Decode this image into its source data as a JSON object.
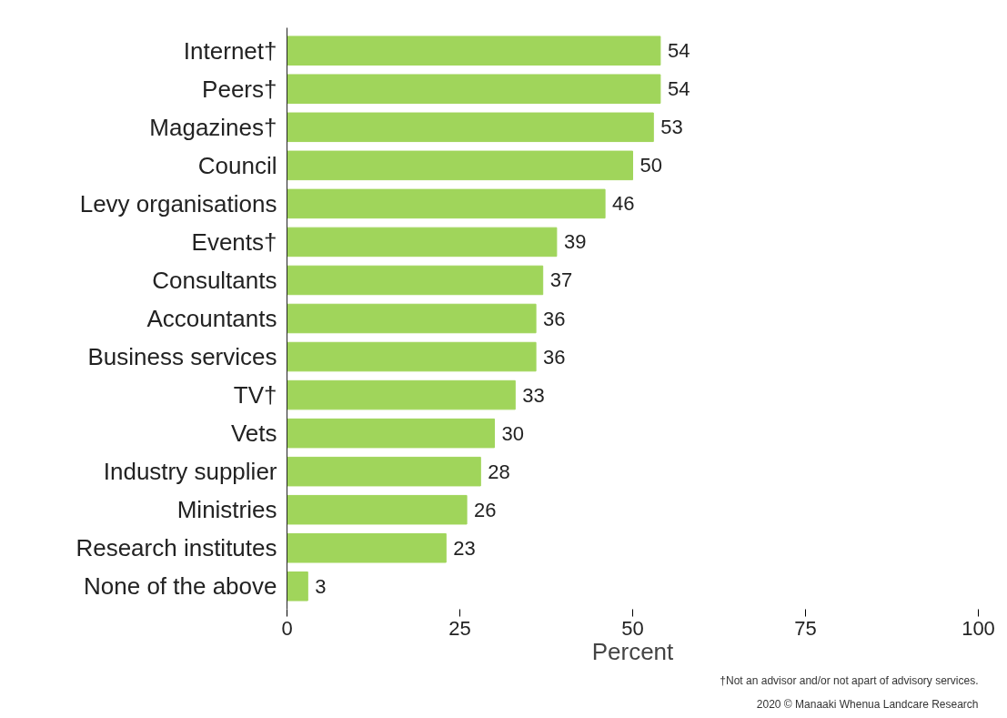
{
  "chart_data": {
    "type": "bar",
    "orientation": "horizontal",
    "xlabel": "Percent",
    "categories": [
      "Internet†",
      "Peers†",
      "Magazines†",
      "Council",
      "Levy organisations",
      "Events†",
      "Consultants",
      "Accountants",
      "Business services",
      "TV†",
      "Vets",
      "Industry supplier",
      "Ministries",
      "Research institutes",
      "None of the above"
    ],
    "values": [
      54,
      54,
      53,
      50,
      46,
      39,
      37,
      36,
      36,
      33,
      30,
      28,
      26,
      23,
      3
    ],
    "color": "#a0d55b",
    "data_labels": true,
    "grid": false,
    "xlim": [
      0,
      100
    ],
    "xticks": [
      0,
      25,
      50,
      75,
      100
    ],
    "annotations": [
      "†Not an advisor and/or not apart of advisory services.",
      "2020 © Manaaki Whenua Landcare Research"
    ]
  }
}
